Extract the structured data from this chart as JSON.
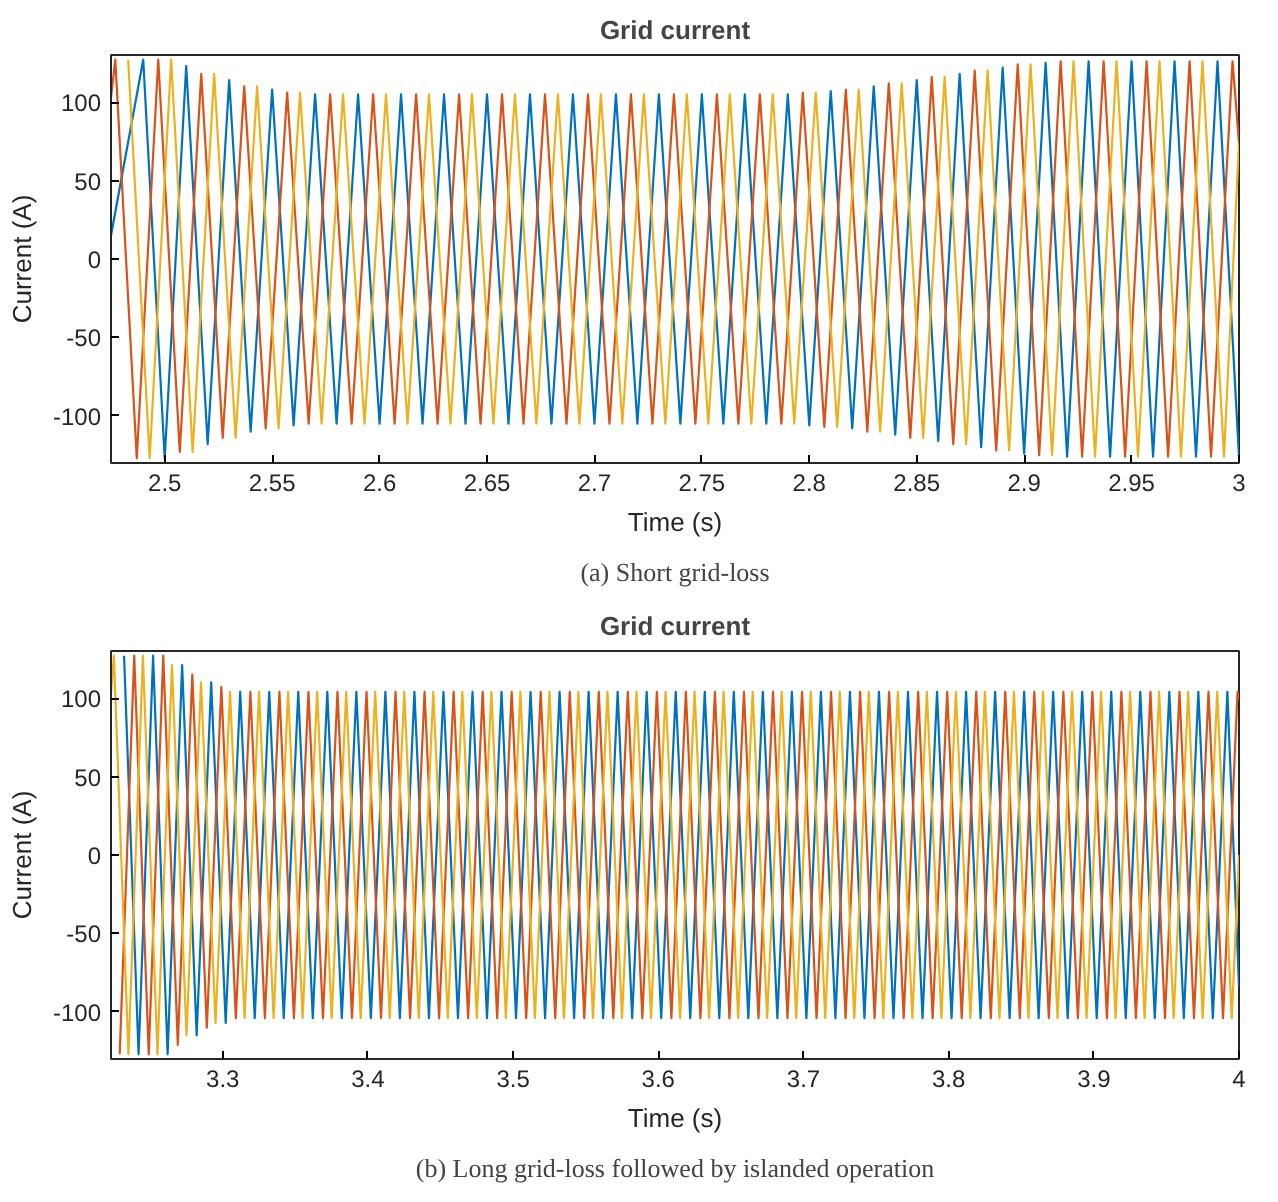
{
  "chart_data": [
    {
      "type": "line",
      "title": "Grid current",
      "xlabel": "Time (s)",
      "ylabel": "Current (A)",
      "annotations": [
        "(a) Short grid-loss"
      ],
      "xlim": [
        2.475,
        3.0
      ],
      "ylim": [
        -130,
        130
      ],
      "xticks": [
        2.5,
        2.55,
        2.6,
        2.65,
        2.7,
        2.75,
        2.8,
        2.85,
        2.9,
        2.95,
        3
      ],
      "yticks": [
        -100,
        -50,
        0,
        50,
        100
      ],
      "series": [
        {
          "color": "#0072bd",
          "x": [
            2.475,
            2.49,
            2.5,
            2.51,
            2.52,
            2.53,
            2.54,
            2.55,
            2.56,
            2.57,
            2.58,
            2.59,
            2.6,
            2.61,
            2.62,
            2.63,
            2.64,
            2.65,
            2.66,
            2.67,
            2.68,
            2.69,
            2.7,
            2.71,
            2.72,
            2.73,
            2.74,
            2.75,
            2.76,
            2.77,
            2.78,
            2.79,
            2.8,
            2.81,
            2.82,
            2.83,
            2.84,
            2.85,
            2.86,
            2.87,
            2.88,
            2.89,
            2.9,
            2.91,
            2.92,
            2.93,
            2.94,
            2.95,
            2.96,
            2.97,
            2.98,
            2.99,
            3.0
          ],
          "values": [
            15,
            127,
            -127,
            123,
            -118,
            114,
            -110,
            108,
            -106,
            105,
            -105,
            105,
            -105,
            105,
            -105,
            105,
            -105,
            105,
            -105,
            105,
            -105,
            105,
            -105,
            105,
            -105,
            105,
            -105,
            105,
            -105,
            105,
            -105,
            105,
            -106,
            107,
            -108,
            110,
            -112,
            114,
            -116,
            118,
            -120,
            122,
            -124,
            125,
            -126,
            126,
            -126,
            126,
            -126,
            126,
            -126,
            126,
            -126
          ]
        },
        {
          "color": "#d95319",
          "x": [
            2.475,
            2.477,
            2.487,
            2.497,
            2.507,
            2.517,
            2.527,
            2.537,
            2.547,
            2.557,
            2.567,
            2.577,
            2.587,
            2.597,
            2.607,
            2.617,
            2.627,
            2.637,
            2.647,
            2.657,
            2.667,
            2.677,
            2.687,
            2.697,
            2.707,
            2.717,
            2.727,
            2.737,
            2.747,
            2.757,
            2.767,
            2.777,
            2.787,
            2.797,
            2.807,
            2.817,
            2.827,
            2.837,
            2.847,
            2.857,
            2.867,
            2.877,
            2.887,
            2.897,
            2.907,
            2.917,
            2.927,
            2.937,
            2.947,
            2.957,
            2.967,
            2.977,
            2.987,
            2.997,
            3.0
          ],
          "values": [
            103,
            127,
            -127,
            127,
            -123,
            118,
            -114,
            110,
            -108,
            106,
            -105,
            105,
            -105,
            105,
            -105,
            105,
            -105,
            105,
            -105,
            105,
            -105,
            105,
            -105,
            105,
            -105,
            105,
            -105,
            105,
            -105,
            105,
            -105,
            105,
            -105,
            106,
            -107,
            108,
            -110,
            112,
            -114,
            116,
            -118,
            120,
            -122,
            124,
            -125,
            126,
            -126,
            126,
            -126,
            126,
            -126,
            126,
            -126,
            126,
            74
          ]
        },
        {
          "color": "#edb120",
          "x": [
            2.483,
            2.493,
            2.503,
            2.513,
            2.523,
            2.533,
            2.543,
            2.553,
            2.563,
            2.573,
            2.583,
            2.593,
            2.603,
            2.613,
            2.623,
            2.633,
            2.643,
            2.653,
            2.663,
            2.673,
            2.683,
            2.693,
            2.703,
            2.713,
            2.723,
            2.733,
            2.743,
            2.753,
            2.763,
            2.773,
            2.783,
            2.793,
            2.803,
            2.813,
            2.823,
            2.833,
            2.843,
            2.853,
            2.863,
            2.873,
            2.883,
            2.893,
            2.903,
            2.913,
            2.923,
            2.933,
            2.943,
            2.953,
            2.963,
            2.973,
            2.983,
            2.993,
            3.0
          ],
          "values": [
            127,
            -127,
            127,
            -123,
            118,
            -114,
            110,
            -108,
            106,
            -105,
            105,
            -105,
            105,
            -105,
            105,
            -105,
            105,
            -105,
            105,
            -105,
            105,
            -105,
            105,
            -105,
            105,
            -105,
            105,
            -105,
            105,
            -105,
            105,
            -105,
            106,
            -107,
            108,
            -110,
            112,
            -114,
            116,
            -118,
            120,
            -122,
            124,
            -125,
            126,
            -126,
            126,
            -126,
            126,
            -126,
            126,
            -126,
            74
          ]
        }
      ]
    },
    {
      "type": "line",
      "title": "Grid current",
      "xlabel": "Time (s)",
      "ylabel": "Current (A)",
      "annotations": [
        "(b) Long grid-loss followed by islanded operation"
      ],
      "xlim": [
        3.223,
        4.0
      ],
      "ylim": [
        -130,
        130
      ],
      "xticks": [
        3.3,
        3.4,
        3.5,
        3.6,
        3.7,
        3.8,
        3.9,
        4
      ],
      "yticks": [
        -100,
        -50,
        0,
        50,
        100
      ],
      "series": [
        {
          "color": "#0072bd",
          "x": [
            3.232,
            3.242,
            3.252,
            3.262,
            3.272,
            3.282,
            3.292,
            3.302,
            3.312,
            3.322,
            3.332,
            3.342,
            3.352,
            3.362,
            3.372,
            3.382,
            3.392,
            3.402,
            3.412,
            3.422,
            3.432,
            3.442,
            3.452,
            3.462,
            3.472,
            3.482,
            3.492,
            3.502,
            3.512,
            3.522,
            3.532,
            3.542,
            3.552,
            3.562,
            3.572,
            3.582,
            3.592,
            3.602,
            3.612,
            3.622,
            3.632,
            3.642,
            3.652,
            3.662,
            3.672,
            3.682,
            3.692,
            3.702,
            3.712,
            3.722,
            3.732,
            3.742,
            3.752,
            3.762,
            3.772,
            3.782,
            3.792,
            3.802,
            3.812,
            3.822,
            3.832,
            3.842,
            3.852,
            3.862,
            3.872,
            3.882,
            3.892,
            3.902,
            3.912,
            3.922,
            3.932,
            3.942,
            3.952,
            3.962,
            3.972,
            3.982,
            3.992,
            4.0
          ],
          "values": [
            127,
            -127,
            127,
            -127,
            121,
            -115,
            110,
            -107,
            104,
            -104,
            104,
            -104,
            104,
            -104,
            104,
            -104,
            104,
            -104,
            104,
            -104,
            104,
            -104,
            104,
            -104,
            104,
            -104,
            104,
            -104,
            104,
            -104,
            104,
            -104,
            104,
            -104,
            104,
            -104,
            104,
            -104,
            104,
            -104,
            104,
            -104,
            104,
            -104,
            104,
            -104,
            104,
            -104,
            104,
            -104,
            104,
            -104,
            104,
            -104,
            104,
            -104,
            104,
            -104,
            104,
            -104,
            104,
            -104,
            104,
            -104,
            104,
            -104,
            104,
            -104,
            104,
            -104,
            104,
            -104,
            104,
            -104,
            104,
            -104,
            104,
            -84
          ]
        },
        {
          "color": "#d95319",
          "x": [
            3.229,
            3.239,
            3.249,
            3.259,
            3.269,
            3.279,
            3.289,
            3.299,
            3.309,
            3.319,
            3.329,
            3.339,
            3.349,
            3.359,
            3.369,
            3.379,
            3.389,
            3.399,
            3.409,
            3.419,
            3.429,
            3.439,
            3.449,
            3.459,
            3.469,
            3.479,
            3.489,
            3.499,
            3.509,
            3.519,
            3.529,
            3.539,
            3.549,
            3.559,
            3.569,
            3.579,
            3.589,
            3.599,
            3.609,
            3.619,
            3.629,
            3.639,
            3.649,
            3.659,
            3.669,
            3.679,
            3.689,
            3.699,
            3.709,
            3.719,
            3.729,
            3.739,
            3.749,
            3.759,
            3.769,
            3.779,
            3.789,
            3.799,
            3.809,
            3.819,
            3.829,
            3.839,
            3.849,
            3.859,
            3.869,
            3.879,
            3.889,
            3.899,
            3.909,
            3.919,
            3.929,
            3.939,
            3.949,
            3.959,
            3.969,
            3.979,
            3.989,
            3.999,
            4.0
          ],
          "values": [
            -127,
            127,
            -127,
            127,
            -121,
            115,
            -110,
            107,
            -104,
            104,
            -104,
            104,
            -104,
            104,
            -104,
            104,
            -104,
            104,
            -104,
            104,
            -104,
            104,
            -104,
            104,
            -104,
            104,
            -104,
            104,
            -104,
            104,
            -104,
            104,
            -104,
            104,
            -104,
            104,
            -104,
            104,
            -104,
            104,
            -104,
            104,
            -104,
            104,
            -104,
            104,
            -104,
            104,
            -104,
            104,
            -104,
            104,
            -104,
            104,
            -104,
            104,
            -104,
            104,
            -104,
            104,
            -104,
            104,
            -104,
            104,
            -104,
            104,
            -104,
            104,
            -104,
            104,
            -104,
            104,
            -104,
            104,
            -104,
            104,
            -104,
            104,
            99
          ]
        },
        {
          "color": "#edb120",
          "x": [
            3.223,
            3.225,
            3.235,
            3.245,
            3.255,
            3.265,
            3.275,
            3.285,
            3.295,
            3.305,
            3.315,
            3.325,
            3.335,
            3.345,
            3.355,
            3.365,
            3.375,
            3.385,
            3.395,
            3.405,
            3.415,
            3.425,
            3.435,
            3.445,
            3.455,
            3.465,
            3.475,
            3.485,
            3.495,
            3.505,
            3.515,
            3.525,
            3.535,
            3.545,
            3.555,
            3.565,
            3.575,
            3.585,
            3.595,
            3.605,
            3.615,
            3.625,
            3.635,
            3.645,
            3.655,
            3.665,
            3.675,
            3.685,
            3.695,
            3.705,
            3.715,
            3.725,
            3.735,
            3.745,
            3.755,
            3.765,
            3.775,
            3.785,
            3.795,
            3.805,
            3.815,
            3.825,
            3.835,
            3.845,
            3.855,
            3.865,
            3.875,
            3.885,
            3.895,
            3.905,
            3.915,
            3.925,
            3.935,
            3.945,
            3.955,
            3.965,
            3.975,
            3.985,
            3.995,
            4.0
          ],
          "values": [
            103,
            127,
            -127,
            127,
            -127,
            121,
            -115,
            110,
            -107,
            104,
            -104,
            104,
            -104,
            104,
            -104,
            104,
            -104,
            104,
            -104,
            104,
            -104,
            104,
            -104,
            104,
            -104,
            104,
            -104,
            104,
            -104,
            104,
            -104,
            104,
            -104,
            104,
            -104,
            104,
            -104,
            104,
            -104,
            104,
            -104,
            104,
            -104,
            104,
            -104,
            104,
            -104,
            104,
            -104,
            104,
            -104,
            104,
            -104,
            104,
            -104,
            104,
            -104,
            104,
            -104,
            104,
            -104,
            104,
            -104,
            104,
            -104,
            104,
            -104,
            104,
            -104,
            104,
            -104,
            104,
            -104,
            104,
            -104,
            104,
            -104,
            104,
            -104,
            0
          ]
        }
      ]
    }
  ]
}
